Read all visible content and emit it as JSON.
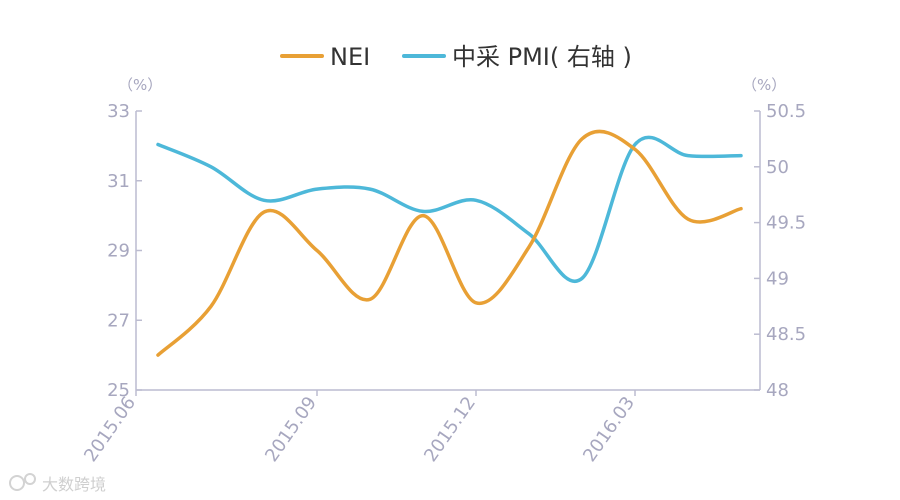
{
  "chart_data": {
    "type": "line",
    "title": "",
    "legend": {
      "placement": "top-center",
      "entries": [
        "NEI",
        "中采 PMI( 右轴 )"
      ]
    },
    "x_ticks": [
      "2015.06",
      "2015.09",
      "2015.12",
      "2016.03"
    ],
    "y_left": {
      "unit": "（%）",
      "range": [
        25,
        33
      ],
      "ticks": [
        "33",
        "31",
        "29",
        "27",
        "25"
      ]
    },
    "y_right": {
      "unit": "（%）",
      "range": [
        48,
        50.5
      ],
      "ticks": [
        "50.5",
        "50",
        "49.5",
        "49",
        "48.5",
        "48"
      ]
    },
    "series": [
      {
        "name": "NEI",
        "axis": "left",
        "color": "#e8a035",
        "x": [
          "2015.06",
          "2015.07",
          "2015.08",
          "2015.09",
          "2015.10",
          "2015.11",
          "2015.12",
          "2016.01",
          "2016.02",
          "2016.03",
          "2016.04",
          "2016.05"
        ],
        "values": [
          26.0,
          27.4,
          30.1,
          29.0,
          27.6,
          30.0,
          27.5,
          29.1,
          32.2,
          31.9,
          29.9,
          30.2
        ]
      },
      {
        "name": "中采 PMI( 右轴 )",
        "axis": "right",
        "color": "#4db8d9",
        "x": [
          "2015.06",
          "2015.07",
          "2015.08",
          "2015.09",
          "2015.10",
          "2015.11",
          "2015.12",
          "2016.01",
          "2016.02",
          "2016.03",
          "2016.04",
          "2016.05"
        ],
        "values": [
          50.2,
          50.0,
          49.7,
          49.8,
          49.8,
          49.6,
          49.7,
          49.4,
          49.0,
          50.2,
          50.1,
          50.1
        ]
      }
    ],
    "grid": false
  },
  "watermark": {
    "text": "大数跨境"
  }
}
